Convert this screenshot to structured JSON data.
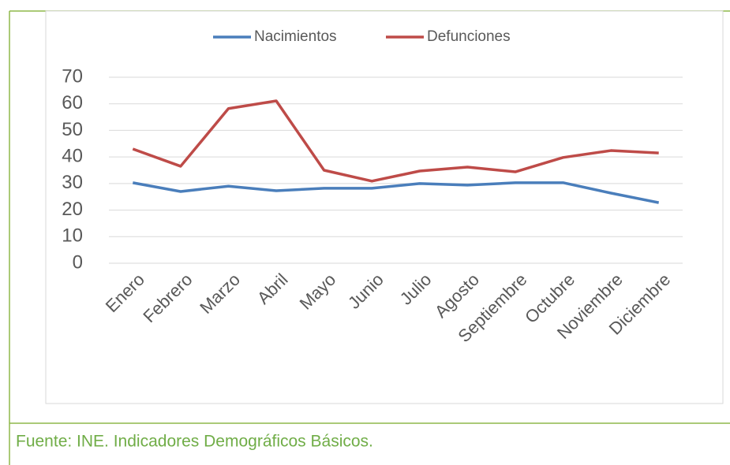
{
  "chart_data": {
    "type": "line",
    "categories": [
      "Enero",
      "Febrero",
      "Marzo",
      "Abril",
      "Mayo",
      "Junio",
      "Julio",
      "Agosto",
      "Septiembre",
      "Octubre",
      "Noviembre",
      "Diciembre"
    ],
    "series": [
      {
        "name": "Nacimientos",
        "color": "#4a7ebb",
        "values": [
          30.3,
          27,
          29,
          27.3,
          28.2,
          28.2,
          30,
          29.4,
          30.3,
          30.3,
          26.4,
          22.8
        ]
      },
      {
        "name": "Defunciones",
        "color": "#be4b48",
        "values": [
          43,
          36.5,
          58.2,
          61.1,
          35,
          30.9,
          34.7,
          36.2,
          34.4,
          39.8,
          42.4,
          41.5
        ]
      }
    ],
    "ylim": [
      0,
      70
    ],
    "yticks": [
      0,
      10,
      20,
      30,
      40,
      50,
      60,
      70
    ],
    "grid": true,
    "legend": "top"
  },
  "footer": {
    "source": "Fuente: INE. Indicadores Demográficos Básicos."
  }
}
